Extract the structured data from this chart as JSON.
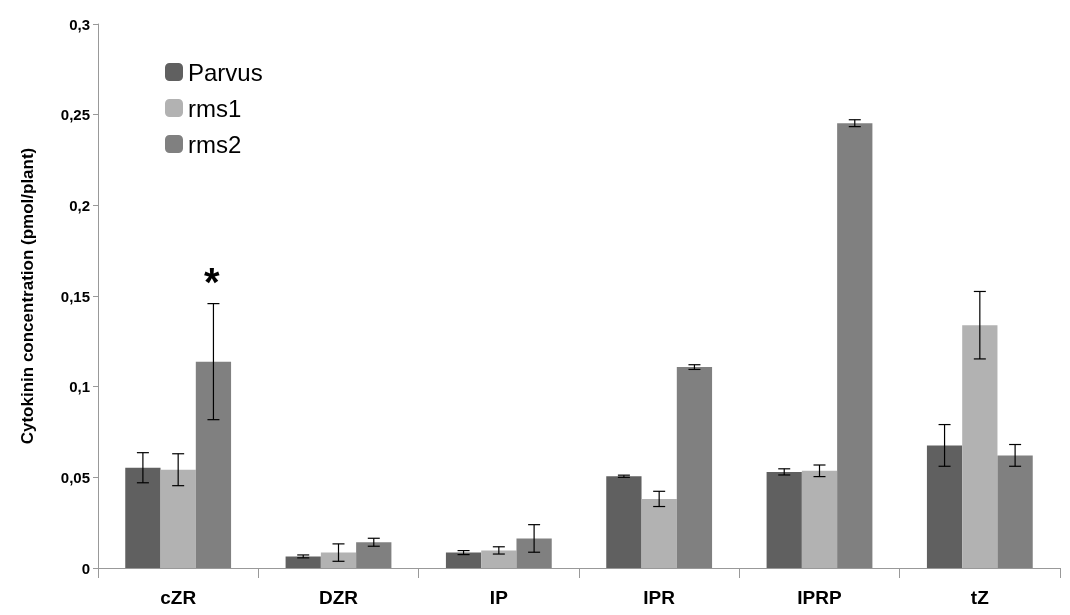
{
  "chart_data": {
    "type": "bar",
    "categories": [
      "cZR",
      "DZR",
      "IP",
      "IPR",
      "IPRP",
      "tZ"
    ],
    "ylabel": "Cytokinin concentration (pmol/plant)",
    "series": [
      {
        "name": "Parvus",
        "color": "#606060",
        "values": [
          0.0553,
          0.0064,
          0.0085,
          0.0506,
          0.053,
          0.0676
        ],
        "errors": [
          0.0083,
          0.0008,
          0.0011,
          0.0006,
          0.0017,
          0.0115
        ]
      },
      {
        "name": "rms1",
        "color": "#b2b2b2",
        "values": [
          0.0542,
          0.0085,
          0.0097,
          0.0381,
          0.0536,
          0.1339
        ],
        "errors": [
          0.0088,
          0.0048,
          0.002,
          0.0042,
          0.0032,
          0.0186
        ]
      },
      {
        "name": "rms2",
        "color": "#808080",
        "values": [
          0.1138,
          0.0142,
          0.0163,
          0.1108,
          0.2453,
          0.0621
        ],
        "errors": [
          0.032,
          0.0022,
          0.0076,
          0.0013,
          0.0019,
          0.006
        ]
      }
    ],
    "ylim": [
      0,
      0.3
    ],
    "yticks": [
      0,
      {
        "value": 0.05,
        "label": "0,05"
      },
      {
        "value": 0.1,
        "label": "0,1"
      },
      {
        "value": 0.15,
        "label": "0,15"
      },
      {
        "value": 0.2,
        "label": "0,2"
      },
      {
        "value": 0.25,
        "label": "0,25"
      },
      {
        "value": 0.3,
        "label": "0,3"
      }
    ],
    "annotations": [
      "*"
    ],
    "grid": false,
    "legend": "top left"
  }
}
